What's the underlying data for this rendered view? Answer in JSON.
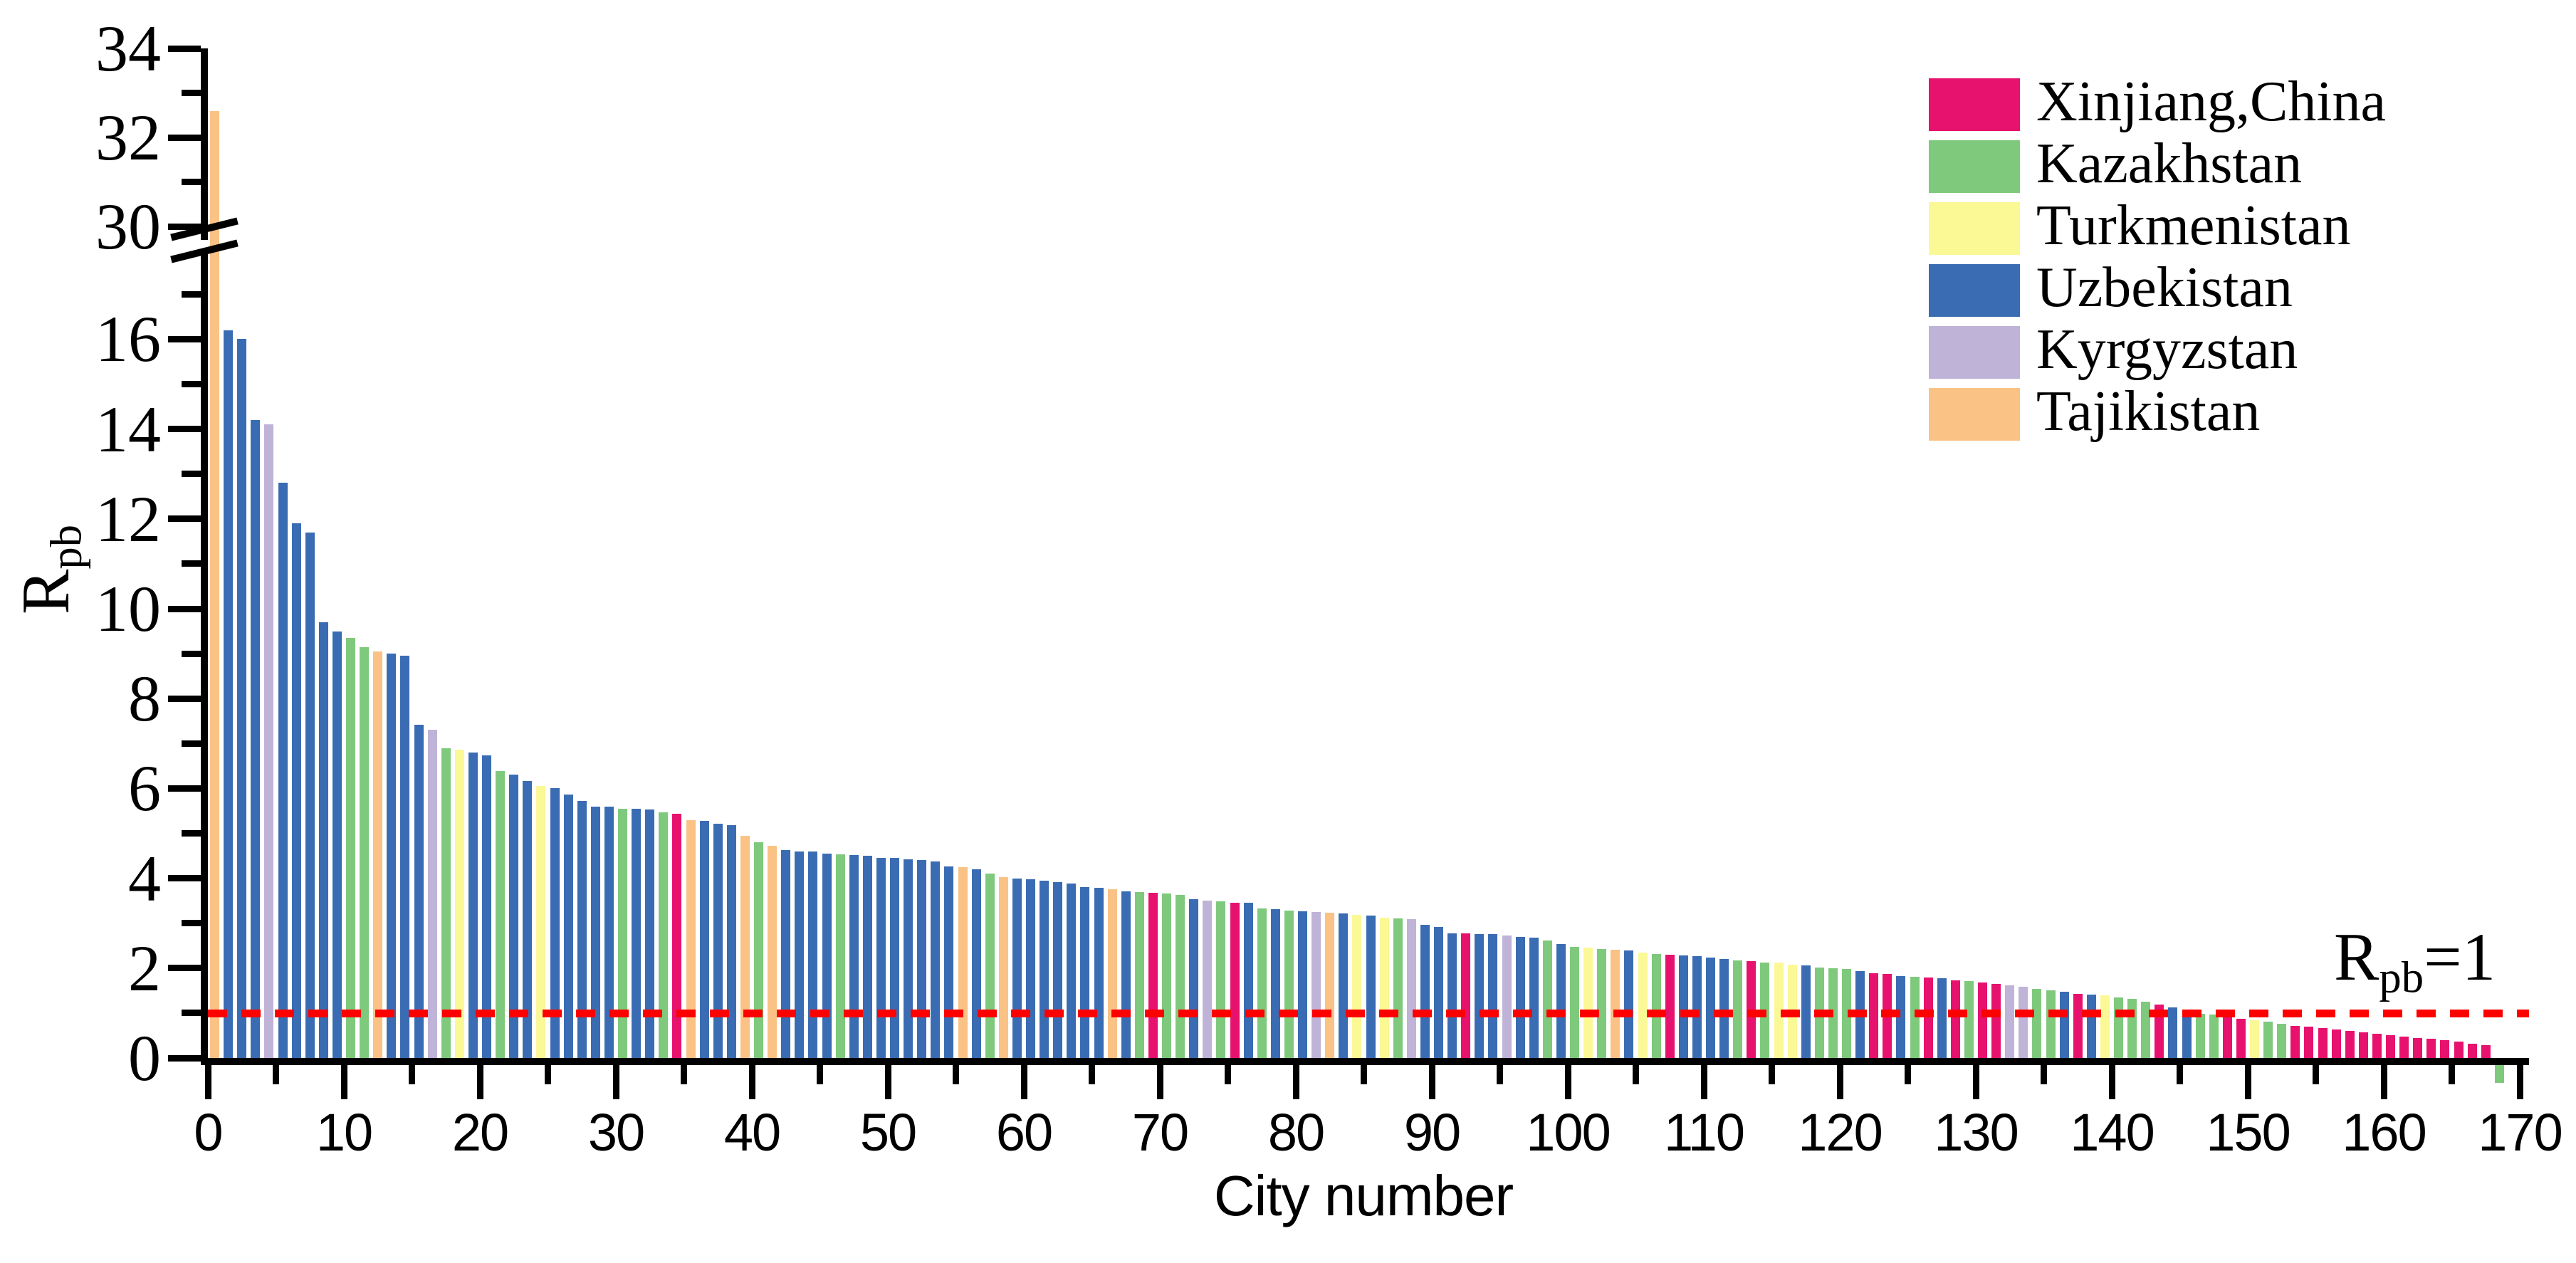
{
  "chart_data": {
    "type": "bar",
    "title": "",
    "xlabel": "City number",
    "ylabel_main": "R",
    "ylabel_sub": "pb",
    "annotation": {
      "main": "R",
      "sub": "pb",
      "tail": "=1"
    },
    "reference_line": {
      "value": 1,
      "color": "#FF0000",
      "style": "dashed"
    },
    "axis": {
      "x_range": [
        0,
        170
      ],
      "x_major_ticks": [
        0,
        10,
        20,
        30,
        40,
        50,
        60,
        70,
        80,
        90,
        100,
        110,
        120,
        130,
        140,
        150,
        160,
        170
      ],
      "x_minor_ticks": [
        5,
        15,
        25,
        35,
        45,
        55,
        65,
        75,
        85,
        95,
        105,
        115,
        125,
        135,
        145,
        155,
        165
      ],
      "y_broken": true,
      "y_lower_range": [
        0,
        17
      ],
      "y_upper_range": [
        30,
        34
      ],
      "y_major_lower": [
        0,
        2,
        4,
        6,
        8,
        10,
        12,
        14,
        16
      ],
      "y_minor_lower": [
        1,
        3,
        5,
        7,
        9,
        11,
        13,
        15,
        17
      ],
      "y_major_upper": [
        30,
        32,
        34
      ],
      "y_minor_upper": [
        31,
        33
      ],
      "grid": false
    },
    "legend_position": "top-right",
    "countries": {
      "X": {
        "label": "Xinjiang,China",
        "color": "#E7116E"
      },
      "K": {
        "label": "Kazakhstan",
        "color": "#7FC97D"
      },
      "T": {
        "label": "Turkmenistan",
        "color": "#FBF896"
      },
      "U": {
        "label": "Uzbekistan",
        "color": "#3A6CB3"
      },
      "Y": {
        "label": "Kyrgyzstan",
        "color": "#BFB3D7"
      },
      "J": {
        "label": "Tajikistan",
        "color": "#FAC285"
      }
    },
    "legend_order": [
      "X",
      "K",
      "T",
      "U",
      "Y",
      "J"
    ],
    "bars": [
      [
        "J",
        32.6
      ],
      [
        "U",
        16.2
      ],
      [
        "U",
        16.0
      ],
      [
        "U",
        14.2
      ],
      [
        "Y",
        14.1
      ],
      [
        "U",
        12.8
      ],
      [
        "U",
        11.9
      ],
      [
        "U",
        11.7
      ],
      [
        "U",
        9.7
      ],
      [
        "U",
        9.5
      ],
      [
        "K",
        9.35
      ],
      [
        "K",
        9.15
      ],
      [
        "J",
        9.05
      ],
      [
        "U",
        9.0
      ],
      [
        "U",
        8.95
      ],
      [
        "U",
        7.42
      ],
      [
        "Y",
        7.3
      ],
      [
        "K",
        6.9
      ],
      [
        "T",
        6.86
      ],
      [
        "U",
        6.8
      ],
      [
        "U",
        6.74
      ],
      [
        "K",
        6.38
      ],
      [
        "U",
        6.31
      ],
      [
        "U",
        6.17
      ],
      [
        "T",
        6.05
      ],
      [
        "U",
        6.01
      ],
      [
        "U",
        5.86
      ],
      [
        "U",
        5.72
      ],
      [
        "U",
        5.6
      ],
      [
        "U",
        5.59
      ],
      [
        "K",
        5.55
      ],
      [
        "U",
        5.55
      ],
      [
        "U",
        5.53
      ],
      [
        "K",
        5.46
      ],
      [
        "X",
        5.43
      ],
      [
        "J",
        5.3
      ],
      [
        "U",
        5.28
      ],
      [
        "U",
        5.22
      ],
      [
        "U",
        5.18
      ],
      [
        "J",
        4.95
      ],
      [
        "K",
        4.8
      ],
      [
        "J",
        4.72
      ],
      [
        "U",
        4.62
      ],
      [
        "U",
        4.6
      ],
      [
        "U",
        4.59
      ],
      [
        "U",
        4.55
      ],
      [
        "K",
        4.54
      ],
      [
        "U",
        4.52
      ],
      [
        "U",
        4.5
      ],
      [
        "U",
        4.46
      ],
      [
        "U",
        4.45
      ],
      [
        "U",
        4.42
      ],
      [
        "U",
        4.41
      ],
      [
        "U",
        4.38
      ],
      [
        "U",
        4.26
      ],
      [
        "J",
        4.24
      ],
      [
        "U",
        4.2
      ],
      [
        "K",
        4.1
      ],
      [
        "J",
        4.02
      ],
      [
        "U",
        4.0
      ],
      [
        "U",
        3.97
      ],
      [
        "U",
        3.94
      ],
      [
        "U",
        3.91
      ],
      [
        "U",
        3.89
      ],
      [
        "U",
        3.81
      ],
      [
        "U",
        3.79
      ],
      [
        "J",
        3.75
      ],
      [
        "U",
        3.71
      ],
      [
        "K",
        3.69
      ],
      [
        "X",
        3.68
      ],
      [
        "K",
        3.66
      ],
      [
        "K",
        3.63
      ],
      [
        "U",
        3.53
      ],
      [
        "Y",
        3.5
      ],
      [
        "K",
        3.48
      ],
      [
        "X",
        3.46
      ],
      [
        "U",
        3.45
      ],
      [
        "K",
        3.33
      ],
      [
        "U",
        3.31
      ],
      [
        "K",
        3.28
      ],
      [
        "U",
        3.26
      ],
      [
        "Y",
        3.25
      ],
      [
        "J",
        3.24
      ],
      [
        "U",
        3.22
      ],
      [
        "T",
        3.19
      ],
      [
        "U",
        3.17
      ],
      [
        "T",
        3.12
      ],
      [
        "K",
        3.11
      ],
      [
        "Y",
        3.09
      ],
      [
        "U",
        2.97
      ],
      [
        "U",
        2.91
      ],
      [
        "U",
        2.78
      ],
      [
        "X",
        2.77
      ],
      [
        "U",
        2.76
      ],
      [
        "U",
        2.75
      ],
      [
        "Y",
        2.73
      ],
      [
        "U",
        2.7
      ],
      [
        "U",
        2.68
      ],
      [
        "K",
        2.61
      ],
      [
        "U",
        2.53
      ],
      [
        "K",
        2.48
      ],
      [
        "T",
        2.46
      ],
      [
        "K",
        2.43
      ],
      [
        "J",
        2.41
      ],
      [
        "U",
        2.4
      ],
      [
        "T",
        2.34
      ],
      [
        "K",
        2.31
      ],
      [
        "X",
        2.3
      ],
      [
        "U",
        2.28
      ],
      [
        "U",
        2.26
      ],
      [
        "U",
        2.23
      ],
      [
        "U",
        2.2
      ],
      [
        "K",
        2.17
      ],
      [
        "X",
        2.16
      ],
      [
        "K",
        2.13
      ],
      [
        "T",
        2.12
      ],
      [
        "T",
        2.08
      ],
      [
        "U",
        2.06
      ],
      [
        "K",
        2.02
      ],
      [
        "K",
        2.0
      ],
      [
        "K",
        1.98
      ],
      [
        "U",
        1.93
      ],
      [
        "X",
        1.88
      ],
      [
        "X",
        1.87
      ],
      [
        "U",
        1.83
      ],
      [
        "K",
        1.81
      ],
      [
        "X",
        1.79
      ],
      [
        "U",
        1.77
      ],
      [
        "X",
        1.73
      ],
      [
        "K",
        1.71
      ],
      [
        "X",
        1.68
      ],
      [
        "X",
        1.65
      ],
      [
        "Y",
        1.61
      ],
      [
        "Y",
        1.59
      ],
      [
        "K",
        1.53
      ],
      [
        "K",
        1.51
      ],
      [
        "U",
        1.47
      ],
      [
        "X",
        1.43
      ],
      [
        "U",
        1.41
      ],
      [
        "T",
        1.39
      ],
      [
        "K",
        1.34
      ],
      [
        "K",
        1.31
      ],
      [
        "K",
        1.25
      ],
      [
        "X",
        1.19
      ],
      [
        "U",
        1.13
      ],
      [
        "U",
        1.06
      ],
      [
        "K",
        0.99
      ],
      [
        "K",
        0.96
      ],
      [
        "X",
        0.91
      ],
      [
        "X",
        0.87
      ],
      [
        "T",
        0.84
      ],
      [
        "K",
        0.81
      ],
      [
        "K",
        0.76
      ],
      [
        "X",
        0.72
      ],
      [
        "X",
        0.69
      ],
      [
        "X",
        0.66
      ],
      [
        "X",
        0.63
      ],
      [
        "X",
        0.6
      ],
      [
        "X",
        0.57
      ],
      [
        "X",
        0.54
      ],
      [
        "X",
        0.51
      ],
      [
        "X",
        0.48
      ],
      [
        "X",
        0.45
      ],
      [
        "X",
        0.42
      ],
      [
        "X",
        0.39
      ],
      [
        "X",
        0.36
      ],
      [
        "X",
        0.32
      ],
      [
        "X",
        0.28
      ],
      [
        "K",
        -0.55
      ]
    ]
  }
}
